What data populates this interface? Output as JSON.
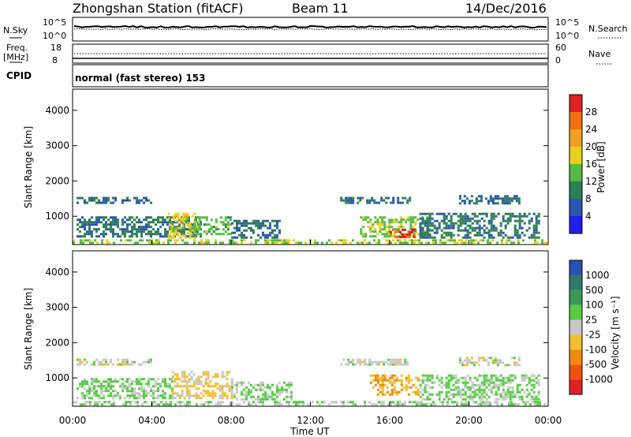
{
  "header": {
    "station": "Zhongshan Station (fitACF)",
    "beam": "Beam 11",
    "date": "14/Dec/2016"
  },
  "top_panels": {
    "nsky_label": "N.Sky",
    "nsky_ticks": [
      "10^5",
      "10^0"
    ],
    "nsearch_label": "N.Search",
    "nsearch_ticks": [
      "10^5",
      "10^0"
    ],
    "freq_label": "Freq.",
    "freq_unit": "[MHz]",
    "freq_ticks": [
      "18",
      "8"
    ],
    "nave_label": "Nave",
    "nave_ticks": [
      "60",
      "0"
    ],
    "cpid_label": "CPID",
    "cpid_text": "normal (fast stereo) 153"
  },
  "x_axis": {
    "label": "Time UT",
    "ticks": [
      "00:00",
      "04:00",
      "08:00",
      "12:00",
      "16:00",
      "20:00",
      "00:00"
    ],
    "range_hours": [
      0,
      24
    ]
  },
  "colors": {
    "power": [
      "#1f1ff0",
      "#2a55b0",
      "#2d8050",
      "#55bb44",
      "#e8d020",
      "#f0a020",
      "#f07010",
      "#e02020"
    ],
    "velocity": [
      "#e02020",
      "#f05010",
      "#f08a10",
      "#f0c030",
      "#c8c8c8",
      "#55cc44",
      "#3a9a55",
      "#2f7a66",
      "#2850b0"
    ]
  },
  "chart_data": [
    {
      "type": "heatmap",
      "panel": "power",
      "ylabel": "Slant Range [km]",
      "yticks": [
        "1000",
        "2000",
        "3000",
        "4000"
      ],
      "ylim": [
        200,
        4600
      ],
      "colorbar_label": "Power [dB]",
      "colorbar_ticks": [
        "4",
        "8",
        "12",
        "16",
        "20",
        "24",
        "28"
      ],
      "colorbar_range": [
        0,
        32
      ],
      "echo_regions": [
        {
          "t": [
            0.0,
            24.0
          ],
          "range": [
            250,
            350
          ],
          "value": 16
        },
        {
          "t": [
            0.2,
            6.5
          ],
          "range": [
            400,
            1000
          ],
          "value": 9
        },
        {
          "t": [
            0.2,
            4.0
          ],
          "range": [
            1350,
            1550
          ],
          "value": 8
        },
        {
          "t": [
            4.8,
            6.2
          ],
          "range": [
            400,
            1100
          ],
          "value": 18
        },
        {
          "t": [
            6.0,
            8.0
          ],
          "range": [
            500,
            1000
          ],
          "value": 14
        },
        {
          "t": [
            8.0,
            10.5
          ],
          "range": [
            400,
            900
          ],
          "value": 8
        },
        {
          "t": [
            13.5,
            17.0
          ],
          "range": [
            1350,
            1550
          ],
          "value": 8
        },
        {
          "t": [
            14.5,
            18.0
          ],
          "range": [
            400,
            1000
          ],
          "value": 15
        },
        {
          "t": [
            16.0,
            17.3
          ],
          "range": [
            400,
            650
          ],
          "value": 28
        },
        {
          "t": [
            17.5,
            23.5
          ],
          "range": [
            400,
            1100
          ],
          "value": 9
        },
        {
          "t": [
            19.5,
            22.5
          ],
          "range": [
            1350,
            1600
          ],
          "value": 8
        }
      ]
    },
    {
      "type": "heatmap",
      "panel": "velocity",
      "ylabel": "Slant Range [km]",
      "yticks": [
        "1000",
        "2000",
        "3000",
        "4000"
      ],
      "ylim": [
        200,
        4600
      ],
      "colorbar_label": "Velocity [m s⁻¹]",
      "colorbar_ticks": [
        "1000",
        "500",
        "100",
        "25",
        "-25",
        "-100",
        "-500",
        "-1000"
      ],
      "colorbar_range": [
        -1000,
        1000
      ],
      "echo_regions": [
        {
          "t": [
            0.0,
            24.0
          ],
          "range": [
            250,
            350
          ],
          "value": 100
        },
        {
          "t": [
            0.2,
            5.0
          ],
          "range": [
            400,
            1000
          ],
          "value": 150
        },
        {
          "t": [
            0.2,
            4.0
          ],
          "range": [
            1350,
            1550
          ],
          "value": 0
        },
        {
          "t": [
            5.0,
            8.0
          ],
          "range": [
            400,
            1200
          ],
          "value": -150
        },
        {
          "t": [
            8.0,
            11.0
          ],
          "range": [
            400,
            900
          ],
          "value": 150
        },
        {
          "t": [
            13.5,
            17.0
          ],
          "range": [
            1350,
            1550
          ],
          "value": 0
        },
        {
          "t": [
            15.0,
            17.5
          ],
          "range": [
            500,
            1100
          ],
          "value": -300
        },
        {
          "t": [
            17.5,
            23.5
          ],
          "range": [
            400,
            1100
          ],
          "value": 150
        },
        {
          "t": [
            19.5,
            22.5
          ],
          "range": [
            1350,
            1600
          ],
          "value": 0
        }
      ]
    }
  ]
}
